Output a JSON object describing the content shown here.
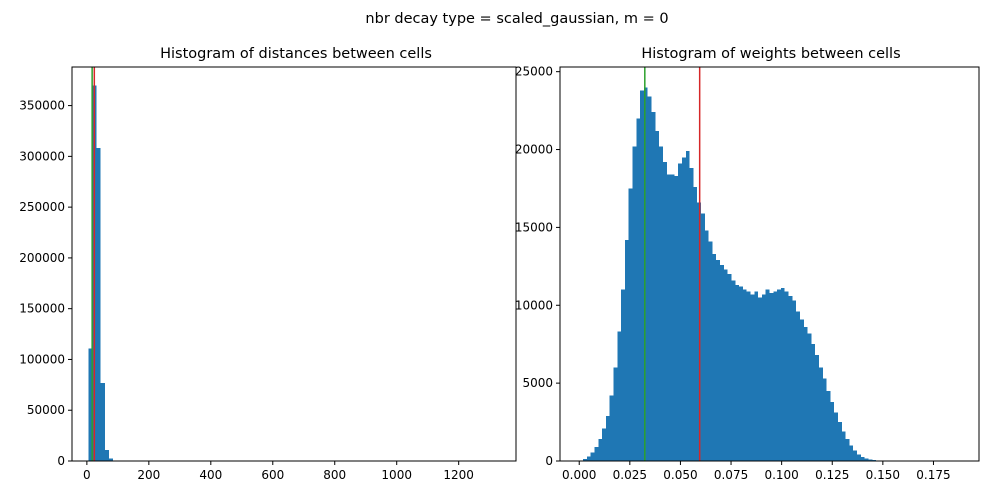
{
  "figure": {
    "suptitle": "nbr decay type = scaled_gaussian, m = 0"
  },
  "colors": {
    "bars": "#1f77b4",
    "green_line": "#2ca02c",
    "red_line": "#d62728",
    "axes": "#000000"
  },
  "chart_data": [
    {
      "type": "bar",
      "title": "Histogram of distances between cells",
      "xlabel": "",
      "ylabel": "",
      "xlim": [
        -48,
        1385
      ],
      "ylim": [
        0,
        388000
      ],
      "xticks": [
        0,
        200,
        400,
        600,
        800,
        1000,
        1200
      ],
      "xtick_labels": [
        "0",
        "200",
        "400",
        "600",
        "800",
        "1000",
        "1200"
      ],
      "yticks": [
        0,
        50000,
        100000,
        150000,
        200000,
        250000,
        300000,
        350000
      ],
      "ytick_labels": [
        "0",
        "50000",
        "100000",
        "150000",
        "200000",
        "250000",
        "300000",
        "350000"
      ],
      "bin_width": 13.2,
      "bins_start": [
        5.0,
        18.2,
        31.4,
        44.6,
        57.8,
        71.0,
        84.2,
        97.4
      ],
      "values": [
        111000,
        370000,
        308000,
        77000,
        11000,
        2500,
        500,
        100
      ],
      "vlines": [
        {
          "x": 17,
          "color": "green"
        },
        {
          "x": 24,
          "color": "red"
        }
      ]
    },
    {
      "type": "bar",
      "title": "Histogram of weights between cells",
      "xlabel": "",
      "ylabel": "",
      "xlim": [
        -0.0095,
        0.1975
      ],
      "ylim": [
        0,
        25300
      ],
      "xticks": [
        0.0,
        0.025,
        0.05,
        0.075,
        0.1,
        0.125,
        0.15,
        0.175
      ],
      "xtick_labels": [
        "0.000",
        "0.025",
        "0.050",
        "0.075",
        "0.100",
        "0.125",
        "0.150",
        "0.175"
      ],
      "yticks": [
        0,
        5000,
        10000,
        15000,
        20000,
        25000
      ],
      "ytick_labels": [
        "0",
        "5000",
        "10000",
        "15000",
        "20000",
        "25000"
      ],
      "bin_width": 0.00188,
      "bins_start_first": 0.0,
      "values": [
        30,
        120,
        280,
        550,
        900,
        1400,
        2100,
        2900,
        4200,
        6000,
        8300,
        11000,
        14200,
        17500,
        20200,
        22000,
        23800,
        24000,
        23400,
        22400,
        21200,
        20200,
        19200,
        18400,
        18400,
        18300,
        19100,
        19500,
        19900,
        18800,
        17600,
        16600,
        15900,
        14800,
        14100,
        13300,
        12900,
        12600,
        12300,
        12000,
        11600,
        11300,
        11200,
        11000,
        10900,
        10700,
        10900,
        10500,
        10700,
        11000,
        10800,
        10900,
        11000,
        11100,
        10900,
        10600,
        10300,
        9600,
        9100,
        8600,
        8200,
        7500,
        6800,
        6000,
        5300,
        4500,
        3800,
        3100,
        2500,
        1900,
        1400,
        1000,
        680,
        420,
        260,
        160,
        90,
        50,
        25,
        12,
        6,
        3,
        2,
        1,
        1,
        1,
        1,
        0,
        0,
        0,
        0,
        0,
        0,
        0,
        0,
        0,
        0,
        0,
        0,
        1
      ],
      "vlines": [
        {
          "x": 0.0324,
          "color": "green"
        },
        {
          "x": 0.0595,
          "color": "red"
        }
      ]
    }
  ]
}
